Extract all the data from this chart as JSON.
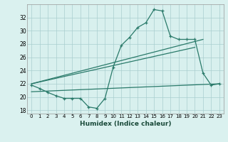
{
  "xlabel": "Humidex (Indice chaleur)",
  "background_color": "#d8f0eeee",
  "grid_color": "#aacfcf",
  "line_color": "#2a7a6a",
  "x_values": [
    0,
    1,
    2,
    3,
    4,
    5,
    6,
    7,
    8,
    9,
    10,
    11,
    12,
    13,
    14,
    15,
    16,
    17,
    18,
    19,
    20,
    21,
    22,
    23
  ],
  "line1_y": [
    21.8,
    21.3,
    20.7,
    20.2,
    19.8,
    19.8,
    19.8,
    18.5,
    18.3,
    19.8,
    24.5,
    27.8,
    29.0,
    30.5,
    31.2,
    33.2,
    33.0,
    29.2,
    28.7,
    28.7,
    28.7,
    23.6,
    21.8,
    22.0
  ],
  "line2_x": [
    0,
    21
  ],
  "line2_y": [
    22.0,
    28.7
  ],
  "line3_x": [
    0,
    20
  ],
  "line3_y": [
    22.0,
    27.5
  ],
  "line4_x": [
    0,
    23
  ],
  "line4_y": [
    20.8,
    22.0
  ],
  "xlim": [
    -0.5,
    23.5
  ],
  "ylim": [
    17.5,
    34.0
  ],
  "yticks": [
    18,
    20,
    22,
    24,
    26,
    28,
    30,
    32
  ],
  "xticks": [
    0,
    1,
    2,
    3,
    4,
    5,
    6,
    7,
    8,
    9,
    10,
    11,
    12,
    13,
    14,
    15,
    16,
    17,
    18,
    19,
    20,
    21,
    22,
    23
  ],
  "xtick_labels": [
    "0",
    "1",
    "2",
    "3",
    "4",
    "5",
    "6",
    "7",
    "8",
    "9",
    "10",
    "11",
    "12",
    "13",
    "14",
    "15",
    "16",
    "17",
    "18",
    "19",
    "20",
    "21",
    "22",
    "23"
  ]
}
